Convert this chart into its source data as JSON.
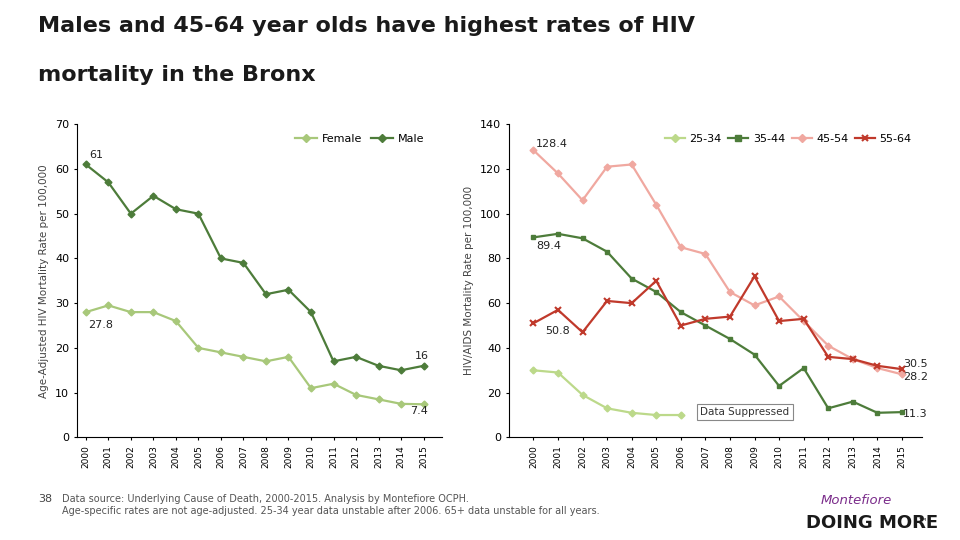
{
  "title_line1": "Males and 45-64 year olds have highest rates of HIV",
  "title_line2": "mortality in the Bronx",
  "title_fontsize": 16,
  "title_fontweight": "bold",
  "background_color": "#ffffff",
  "years": [
    2000,
    2001,
    2002,
    2003,
    2004,
    2005,
    2006,
    2007,
    2008,
    2009,
    2010,
    2011,
    2012,
    2013,
    2014,
    2015
  ],
  "left_chart": {
    "ylabel": "Age-Adjusted HIV Mortality Rate per 100,000",
    "ylim": [
      0,
      70
    ],
    "yticks": [
      0,
      10,
      20,
      30,
      40,
      50,
      60,
      70
    ],
    "male": [
      61,
      57,
      50,
      54,
      51,
      50,
      40,
      39,
      32,
      33,
      28,
      17,
      18,
      16,
      15,
      16
    ],
    "female": [
      28,
      29.5,
      28,
      28,
      26,
      20,
      19,
      18,
      17,
      18,
      11,
      12,
      9.5,
      8.5,
      7.5,
      7.4
    ],
    "male_color": "#4d7c3a",
    "female_color": "#a8c87a",
    "male_label": "Male",
    "female_label": "Female"
  },
  "right_chart": {
    "ylabel": "HIV/AIDS Mortality Rate per 100,000",
    "ylim": [
      0,
      140
    ],
    "yticks": [
      0,
      20,
      40,
      60,
      80,
      100,
      120,
      140
    ],
    "age2534": [
      30,
      29,
      19,
      13,
      11,
      10,
      10,
      null,
      null,
      null,
      null,
      null,
      null,
      null,
      null,
      null
    ],
    "age3544": [
      89.4,
      91,
      89,
      83,
      71,
      65,
      56,
      50,
      44,
      37,
      23,
      31,
      13,
      16,
      11,
      11.3
    ],
    "age4554": [
      128.4,
      118,
      106,
      121,
      122,
      104,
      85,
      82,
      65,
      59,
      63,
      52,
      41,
      35,
      31,
      28.2
    ],
    "age5564": [
      51,
      57,
      47,
      61,
      60,
      70,
      50,
      53,
      54,
      72,
      52,
      53,
      36,
      35,
      32,
      30.5
    ],
    "color2534": "#bcd98a",
    "color3544": "#4d7c3a",
    "color4554": "#f0a8a0",
    "color5564": "#c0392b",
    "label2534": "25-34",
    "label3544": "35-44",
    "label4554": "45-54",
    "label5564": "55-64",
    "data_suppressed_text": "Data Suppressed"
  },
  "footnote": "Data source: Underlying Cause of Death, 2000-2015. Analysis by Montefiore OCPH.\nAge-specific rates are not age-adjusted. 25-34 year data unstable after 2006. 65+ data unstable for all years.",
  "footnote_number": "38"
}
